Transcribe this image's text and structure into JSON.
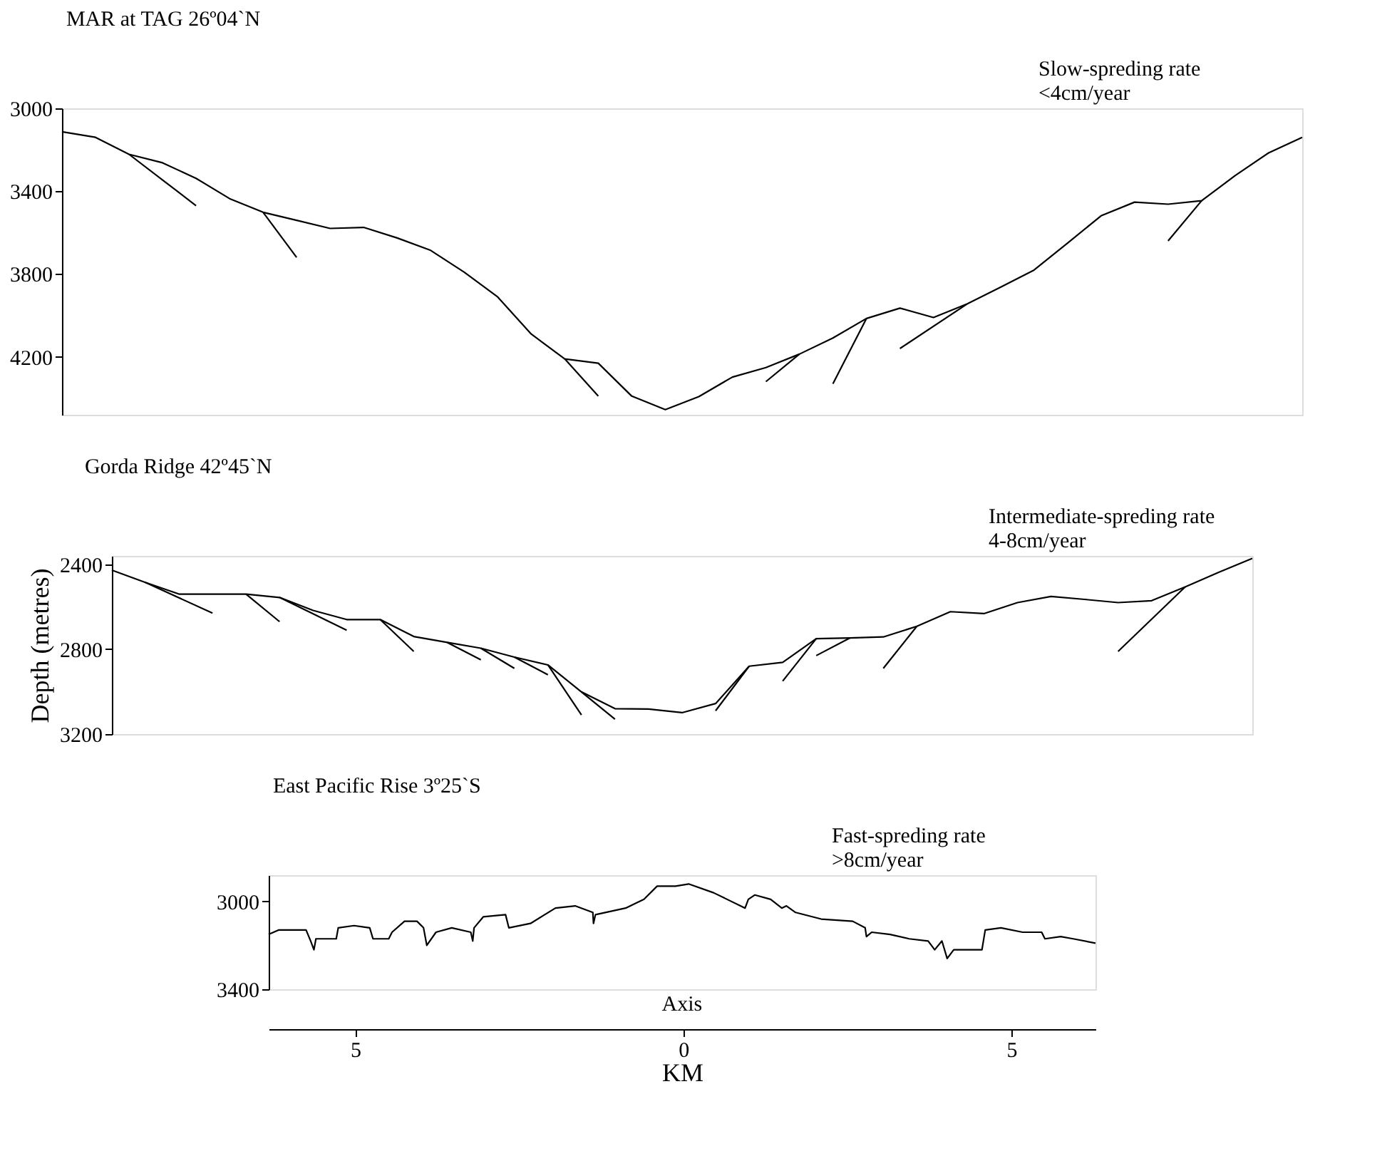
{
  "chart_data": [
    {
      "type": "line",
      "title": "MAR at TAG 26º04`N",
      "annotations": [
        "Slow-spreding rate",
        "<4cm/year"
      ],
      "categories": [
        null,
        null,
        null,
        null,
        null,
        null,
        null,
        null,
        null,
        null,
        null,
        null,
        null,
        null,
        null,
        null,
        null,
        null,
        null,
        null,
        null,
        null,
        null,
        null,
        null,
        null,
        null,
        null,
        null,
        null,
        null,
        null,
        null,
        null,
        null,
        null,
        null,
        null
      ],
      "ylim": [
        4480,
        3000
      ],
      "yticks": [
        3000,
        3400,
        3800,
        4200
      ],
      "series": [
        {
          "color": "#000000",
          "values": [
            3113,
            3140,
            3222,
            3263,
            3338,
            3436,
            3502,
            3541,
            3580,
            3575,
            3626,
            3686,
            3791,
            3911,
            4090,
            4210,
            4231,
            4390,
            4455,
            4392,
            4298,
            4252,
            4187,
            4109,
            4015,
            3965,
            4010,
            3945,
            3864,
            3781,
            3651,
            3519,
            3453,
            3463,
            3446,
            3325,
            3215,
            3140
          ]
        },
        {
          "color": "#000000",
          "values": [
            null,
            null,
            3222,
            null,
            3470,
            null,
            null,
            null,
            null,
            null,
            null,
            null,
            null,
            null,
            null,
            null,
            null,
            null,
            null,
            null,
            null,
            null,
            null,
            null,
            null,
            null,
            null,
            null,
            null,
            null,
            null,
            null,
            null,
            null,
            null,
            null,
            null,
            null
          ]
        },
        {
          "color": "#000000",
          "values": [
            null,
            null,
            null,
            null,
            null,
            null,
            3502,
            3720,
            null,
            null,
            null,
            null,
            null,
            null,
            null,
            null,
            null,
            null,
            null,
            null,
            null,
            null,
            null,
            null,
            null,
            null,
            null,
            null,
            null,
            null,
            null,
            null,
            null,
            null,
            null,
            null,
            null,
            null
          ]
        },
        {
          "color": "#000000",
          "values": [
            null,
            null,
            null,
            null,
            null,
            null,
            null,
            null,
            null,
            null,
            null,
            null,
            null,
            null,
            null,
            4210,
            4390,
            null,
            null,
            null,
            null,
            null,
            null,
            null,
            null,
            null,
            null,
            null,
            null,
            null,
            null,
            null,
            null,
            null,
            null,
            null,
            null,
            null
          ]
        },
        {
          "color": "#000000",
          "values": [
            null,
            null,
            null,
            null,
            null,
            null,
            null,
            null,
            null,
            null,
            null,
            null,
            null,
            null,
            null,
            null,
            null,
            null,
            null,
            null,
            null,
            4320,
            4187,
            null,
            null,
            null,
            null,
            null,
            null,
            null,
            null,
            null,
            null,
            null,
            null,
            null,
            null,
            null
          ]
        },
        {
          "color": "#000000",
          "values": [
            null,
            null,
            null,
            null,
            null,
            null,
            null,
            null,
            null,
            null,
            null,
            null,
            null,
            null,
            null,
            null,
            null,
            null,
            null,
            null,
            null,
            null,
            null,
            4330,
            4015,
            null,
            null,
            null,
            null,
            null,
            null,
            null,
            null,
            null,
            null,
            null,
            null,
            null
          ]
        },
        {
          "color": "#000000",
          "values": [
            null,
            null,
            null,
            null,
            null,
            null,
            null,
            null,
            null,
            null,
            null,
            null,
            null,
            null,
            null,
            null,
            null,
            null,
            null,
            null,
            null,
            null,
            null,
            null,
            null,
            4160,
            null,
            3945,
            null,
            null,
            null,
            null,
            null,
            null,
            null,
            null,
            null,
            null
          ]
        },
        {
          "color": "#000000",
          "values": [
            null,
            null,
            null,
            null,
            null,
            null,
            null,
            null,
            null,
            null,
            null,
            null,
            null,
            null,
            null,
            null,
            null,
            null,
            null,
            null,
            null,
            null,
            null,
            null,
            null,
            null,
            null,
            null,
            null,
            null,
            null,
            null,
            null,
            3640,
            3446,
            null,
            null,
            null
          ]
        }
      ]
    },
    {
      "type": "line",
      "title": "Gorda Ridge 42º45`N",
      "ylabel": "Depth (metres)",
      "annotations": [
        "Intermediate-spreding rate",
        "4-8cm/year"
      ],
      "categories": [
        null,
        null,
        null,
        null,
        null,
        null,
        null,
        null,
        null,
        null,
        null,
        null,
        null,
        null,
        null,
        null,
        null,
        null,
        null,
        null,
        null,
        null,
        null,
        null,
        null,
        null,
        null,
        null,
        null,
        null,
        null,
        null,
        null,
        null,
        null
      ],
      "ylim": [
        3200,
        2360
      ],
      "yticks": [
        2400,
        2800,
        3200
      ],
      "series": [
        {
          "color": "#000000",
          "values": [
            2427,
            2485,
            2540,
            2540,
            2540,
            2556,
            2617,
            2660,
            2660,
            2740,
            2768,
            2795,
            2837,
            2874,
            3001,
            3080,
            3082,
            3099,
            3056,
            2880,
            2862,
            2750,
            2747,
            2742,
            2692,
            2623,
            2632,
            2580,
            2551,
            2565,
            2580,
            2571,
            2506,
            2437,
            2372
          ]
        },
        {
          "color": "#000000",
          "values": [
            null,
            2485,
            null,
            2630,
            null,
            null,
            null,
            null,
            null,
            null,
            null,
            null,
            null,
            null,
            null,
            null,
            null,
            null,
            null,
            null,
            null,
            null,
            null,
            null,
            null,
            null,
            null,
            null,
            null,
            null,
            null,
            null,
            null,
            null,
            null
          ]
        },
        {
          "color": "#000000",
          "values": [
            null,
            null,
            null,
            null,
            2540,
            2670,
            null,
            null,
            null,
            null,
            null,
            null,
            null,
            null,
            null,
            null,
            null,
            null,
            null,
            null,
            null,
            null,
            null,
            null,
            null,
            null,
            null,
            null,
            null,
            null,
            null,
            null,
            null,
            null,
            null
          ]
        },
        {
          "color": "#000000",
          "values": [
            null,
            null,
            null,
            null,
            null,
            2556,
            null,
            2710,
            null,
            null,
            null,
            null,
            null,
            null,
            null,
            null,
            null,
            null,
            null,
            null,
            null,
            null,
            null,
            null,
            null,
            null,
            null,
            null,
            null,
            null,
            null,
            null,
            null,
            null,
            null
          ]
        },
        {
          "color": "#000000",
          "values": [
            null,
            null,
            null,
            null,
            null,
            null,
            null,
            null,
            2660,
            2810,
            null,
            null,
            null,
            null,
            null,
            null,
            null,
            null,
            null,
            null,
            null,
            null,
            null,
            null,
            null,
            null,
            null,
            null,
            null,
            null,
            null,
            null,
            null,
            null,
            null
          ]
        },
        {
          "color": "#000000",
          "values": [
            null,
            null,
            null,
            null,
            null,
            null,
            null,
            null,
            null,
            null,
            2768,
            2850,
            null,
            null,
            null,
            null,
            null,
            null,
            null,
            null,
            null,
            null,
            null,
            null,
            null,
            null,
            null,
            null,
            null,
            null,
            null,
            null,
            null,
            null,
            null
          ]
        },
        {
          "color": "#000000",
          "values": [
            null,
            null,
            null,
            null,
            null,
            null,
            null,
            null,
            null,
            null,
            null,
            2795,
            2890,
            null,
            null,
            null,
            null,
            null,
            null,
            null,
            null,
            null,
            null,
            null,
            null,
            null,
            null,
            null,
            null,
            null,
            null,
            null,
            null,
            null,
            null
          ]
        },
        {
          "color": "#000000",
          "values": [
            null,
            null,
            null,
            null,
            null,
            null,
            null,
            null,
            null,
            null,
            null,
            null,
            2837,
            2920,
            null,
            null,
            null,
            null,
            null,
            null,
            null,
            null,
            null,
            null,
            null,
            null,
            null,
            null,
            null,
            null,
            null,
            null,
            null,
            null,
            null
          ]
        },
        {
          "color": "#000000",
          "values": [
            null,
            null,
            null,
            null,
            null,
            null,
            null,
            null,
            null,
            null,
            null,
            null,
            null,
            2874,
            3110,
            null,
            null,
            null,
            null,
            null,
            null,
            null,
            null,
            null,
            null,
            null,
            null,
            null,
            null,
            null,
            null,
            null,
            null,
            null,
            null
          ]
        },
        {
          "color": "#000000",
          "values": [
            null,
            null,
            null,
            null,
            null,
            null,
            null,
            null,
            null,
            null,
            null,
            null,
            null,
            null,
            3001,
            3130,
            null,
            null,
            null,
            null,
            null,
            null,
            null,
            null,
            null,
            null,
            null,
            null,
            null,
            null,
            null,
            null,
            null,
            null,
            null
          ]
        },
        {
          "color": "#000000",
          "values": [
            null,
            null,
            null,
            null,
            null,
            null,
            null,
            null,
            null,
            null,
            null,
            null,
            null,
            null,
            null,
            null,
            null,
            null,
            3090,
            2880,
            null,
            null,
            null,
            null,
            null,
            null,
            null,
            null,
            null,
            null,
            null,
            null,
            null,
            null,
            null
          ]
        },
        {
          "color": "#000000",
          "values": [
            null,
            null,
            null,
            null,
            null,
            null,
            null,
            null,
            null,
            null,
            null,
            null,
            null,
            null,
            null,
            null,
            null,
            null,
            null,
            null,
            2950,
            2750,
            null,
            null,
            null,
            null,
            null,
            null,
            null,
            null,
            null,
            null,
            null,
            null,
            null
          ]
        },
        {
          "color": "#000000",
          "values": [
            null,
            null,
            null,
            null,
            null,
            null,
            null,
            null,
            null,
            null,
            null,
            null,
            null,
            null,
            null,
            null,
            null,
            null,
            null,
            null,
            null,
            2830,
            2747,
            null,
            null,
            null,
            null,
            null,
            null,
            null,
            null,
            null,
            null,
            null,
            null
          ]
        },
        {
          "color": "#000000",
          "values": [
            null,
            null,
            null,
            null,
            null,
            null,
            null,
            null,
            null,
            null,
            null,
            null,
            null,
            null,
            null,
            null,
            null,
            null,
            null,
            null,
            null,
            null,
            null,
            2890,
            2692,
            null,
            null,
            null,
            null,
            null,
            null,
            null,
            null,
            null,
            null
          ]
        },
        {
          "color": "#000000",
          "values": [
            null,
            null,
            null,
            null,
            null,
            null,
            null,
            null,
            null,
            null,
            null,
            null,
            null,
            null,
            null,
            null,
            null,
            null,
            null,
            null,
            null,
            null,
            null,
            null,
            null,
            null,
            null,
            null,
            null,
            null,
            2810,
            null,
            2506,
            null,
            null
          ]
        }
      ]
    },
    {
      "type": "line",
      "title": "East Pacific Rise 3º25`S",
      "xlabel": "KM",
      "annotations": [
        "Fast-spreding rate",
        ">8cm/year",
        "Axis"
      ],
      "xlim": [
        -6.32,
        6.28
      ],
      "xticks": [
        {
          "value": -5,
          "label": "5"
        },
        0,
        5
      ],
      "ylim": [
        3400,
        2880
      ],
      "yticks": [
        3000,
        3400
      ],
      "series": [
        {
          "color": "#000000",
          "x": [
            -6.32,
            -6.17,
            -5.75,
            -5.68,
            -5.63,
            -5.6,
            -5.29,
            -5.26,
            -5.02,
            -4.78,
            -4.73,
            -4.49,
            -4.44,
            -4.25,
            -4.06,
            -3.96,
            -3.91,
            -3.77,
            -3.53,
            -3.24,
            -3.21,
            -3.19,
            -3.05,
            -2.71,
            -2.66,
            -2.33,
            -1.95,
            -1.65,
            -1.38,
            -1.37,
            -1.34,
            -0.88,
            -0.6,
            -0.4,
            -0.12,
            0.08,
            0.46,
            0.94,
            0.99,
            1.09,
            1.33,
            1.5,
            1.57,
            1.71,
            2.1,
            2.58,
            2.77,
            2.79,
            2.87,
            3.15,
            3.44,
            3.73,
            3.83,
            3.94,
            4.02,
            4.12,
            4.55,
            4.6,
            4.84,
            5.17,
            5.46,
            5.51,
            5.75,
            5.94,
            6.28
          ],
          "values": [
            3150,
            3130,
            3130,
            3180,
            3220,
            3170,
            3170,
            3120,
            3110,
            3120,
            3170,
            3170,
            3140,
            3090,
            3090,
            3120,
            3200,
            3140,
            3120,
            3140,
            3180,
            3120,
            3070,
            3060,
            3120,
            3100,
            3030,
            3020,
            3050,
            3100,
            3060,
            3030,
            2990,
            2930,
            2930,
            2920,
            2960,
            3030,
            2990,
            2970,
            2990,
            3030,
            3020,
            3050,
            3080,
            3090,
            3120,
            3160,
            3140,
            3150,
            3170,
            3180,
            3220,
            3180,
            3260,
            3220,
            3220,
            3130,
            3120,
            3140,
            3140,
            3170,
            3160,
            3170,
            3190
          ]
        }
      ]
    }
  ]
}
